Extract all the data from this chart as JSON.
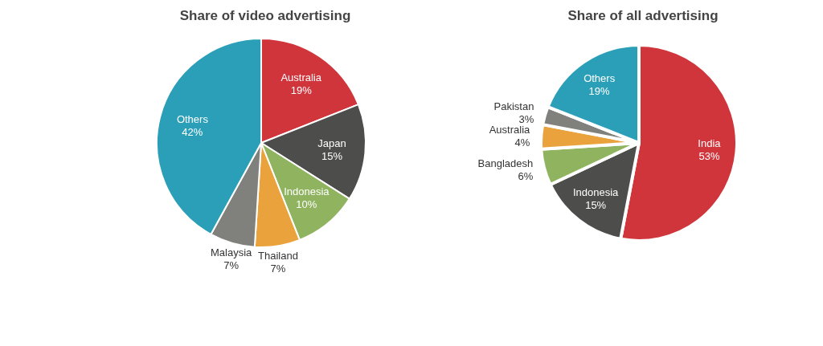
{
  "chart_data": [
    {
      "type": "pie",
      "title": "Share of video advertising",
      "categories": [
        "Australia",
        "Japan",
        "Indonesia",
        "Thailand",
        "Malaysia",
        "Others"
      ],
      "values": [
        19,
        15,
        10,
        7,
        7,
        42
      ],
      "value_labels": [
        "19%",
        "15%",
        "10%",
        "7%",
        "7%",
        "42%"
      ],
      "colors": [
        "#d1353c",
        "#4d4d4b",
        "#8fb35e",
        "#eaa23c",
        "#80817d",
        "#2c9fb8"
      ]
    },
    {
      "type": "pie",
      "title": "Share of all advertising",
      "categories": [
        "India",
        "Indonesia",
        "Bangladesh",
        "Australia",
        "Pakistan",
        "Others"
      ],
      "values": [
        53,
        15,
        6,
        4,
        3,
        19
      ],
      "value_labels": [
        "53%",
        "15%",
        "6%",
        "4%",
        "3%",
        "19%"
      ],
      "colors": [
        "#d1353c",
        "#4d4d4b",
        "#8fb35e",
        "#eaa23c",
        "#80817d",
        "#2c9fb8"
      ]
    }
  ]
}
